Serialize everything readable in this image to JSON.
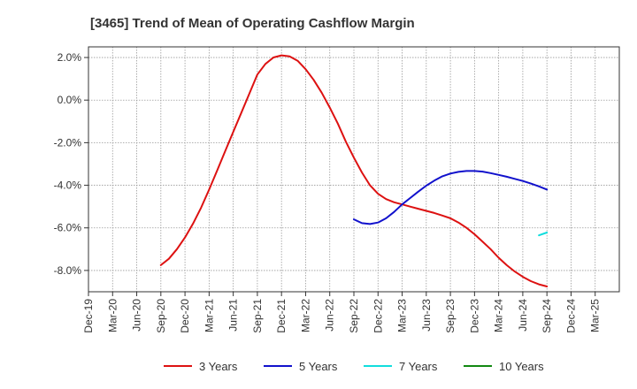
{
  "chart_data": {
    "type": "line",
    "title": "[3465]  Trend of Mean of Operating Cashflow Margin",
    "xlabel": "",
    "ylabel": "",
    "x_ticks": [
      "Dec-19",
      "Mar-20",
      "Jun-20",
      "Sep-20",
      "Dec-20",
      "Mar-21",
      "Jun-21",
      "Sep-21",
      "Dec-21",
      "Mar-22",
      "Jun-22",
      "Sep-22",
      "Dec-22",
      "Mar-23",
      "Jun-23",
      "Sep-23",
      "Dec-23",
      "Mar-24",
      "Jun-24",
      "Sep-24",
      "Dec-24",
      "Mar-25"
    ],
    "y_ticks": [
      "2.0%",
      "0.0%",
      "-2.0%",
      "-4.0%",
      "-6.0%",
      "-8.0%"
    ],
    "y_tick_values": [
      2,
      0,
      -2,
      -4,
      -6,
      -8
    ],
    "ylim": [
      -9.0,
      2.5
    ],
    "grid": true,
    "legend_position": "bottom",
    "series": [
      {
        "name": "3 Years",
        "color": "#dd1111",
        "x": [
          "Sep-20",
          "Oct-20",
          "Nov-20",
          "Dec-20",
          "Jan-21",
          "Feb-21",
          "Mar-21",
          "Apr-21",
          "May-21",
          "Jun-21",
          "Jul-21",
          "Aug-21",
          "Sep-21",
          "Oct-21",
          "Nov-21",
          "Dec-21",
          "Jan-22",
          "Feb-22",
          "Mar-22",
          "Apr-22",
          "May-22",
          "Jun-22",
          "Jul-22",
          "Aug-22",
          "Sep-22",
          "Oct-22",
          "Nov-22",
          "Dec-22",
          "Jan-23",
          "Feb-23",
          "Mar-23",
          "Apr-23",
          "May-23",
          "Jun-23",
          "Jul-23",
          "Aug-23",
          "Sep-23",
          "Oct-23",
          "Nov-23",
          "Dec-23",
          "Jan-24",
          "Feb-24",
          "Mar-24",
          "Apr-24",
          "May-24",
          "Jun-24",
          "Jul-24",
          "Aug-24",
          "Sep-24"
        ],
        "values": [
          -7.75,
          -7.45,
          -7.0,
          -6.45,
          -5.8,
          -5.05,
          -4.2,
          -3.3,
          -2.4,
          -1.5,
          -0.6,
          0.3,
          1.2,
          1.7,
          2.0,
          2.1,
          2.05,
          1.85,
          1.45,
          0.95,
          0.35,
          -0.35,
          -1.1,
          -1.95,
          -2.7,
          -3.4,
          -4.0,
          -4.4,
          -4.65,
          -4.8,
          -4.9,
          -5.0,
          -5.1,
          -5.2,
          -5.3,
          -5.42,
          -5.55,
          -5.75,
          -6.0,
          -6.3,
          -6.65,
          -7.0,
          -7.4,
          -7.75,
          -8.05,
          -8.3,
          -8.5,
          -8.65,
          -8.75
        ]
      },
      {
        "name": "5 Years",
        "color": "#1111cc",
        "x": [
          "Sep-22",
          "Oct-22",
          "Nov-22",
          "Dec-22",
          "Jan-23",
          "Feb-23",
          "Mar-23",
          "Apr-23",
          "May-23",
          "Jun-23",
          "Jul-23",
          "Aug-23",
          "Sep-23",
          "Oct-23",
          "Nov-23",
          "Dec-23",
          "Jan-24",
          "Feb-24",
          "Mar-24",
          "Apr-24",
          "May-24",
          "Jun-24",
          "Jul-24",
          "Aug-24",
          "Sep-24"
        ],
        "values": [
          -5.6,
          -5.78,
          -5.82,
          -5.75,
          -5.55,
          -5.25,
          -4.9,
          -4.6,
          -4.3,
          -4.02,
          -3.78,
          -3.58,
          -3.45,
          -3.37,
          -3.33,
          -3.33,
          -3.36,
          -3.43,
          -3.51,
          -3.6,
          -3.7,
          -3.8,
          -3.92,
          -4.05,
          -4.2
        ]
      },
      {
        "name": "7 Years",
        "color": "#11dddd",
        "x": [
          "Aug-24",
          "Sep-24"
        ],
        "values": [
          -6.35,
          -6.22
        ]
      },
      {
        "name": "10 Years",
        "color": "#118811",
        "x": [],
        "values": []
      }
    ]
  }
}
